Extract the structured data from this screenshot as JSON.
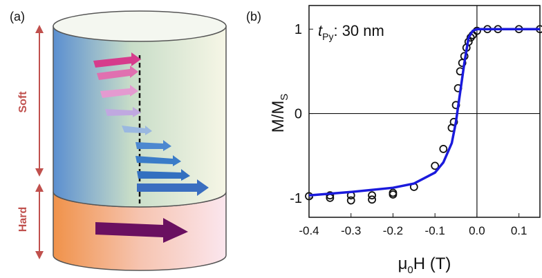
{
  "panel_a": {
    "label": "(a)",
    "soft_label": "Soft",
    "hard_label": "Hard"
  },
  "chart_data": {
    "type": "scatter",
    "panel_label": "(b)",
    "annotation": [
      "t",
      "Py",
      ": 30 nm"
    ],
    "x_label": [
      "μ",
      "0",
      "H (T)"
    ],
    "y_label": [
      "M/M",
      "S"
    ],
    "xlim": [
      -0.4,
      0.15
    ],
    "ylim": [
      -1.23,
      1.28
    ],
    "xticks": [
      -0.4,
      -0.3,
      -0.2,
      -0.1,
      {
        "value": 0,
        "label": "0.0"
      },
      0.1
    ],
    "yticks": [
      -1,
      0,
      1
    ],
    "zero_lines": true,
    "series": [
      {
        "type": "scatter",
        "color": "#111111",
        "x": [
          -0.4,
          -0.35,
          -0.35,
          -0.3,
          -0.3,
          -0.25,
          -0.25,
          -0.2,
          -0.2,
          -0.15,
          -0.1,
          -0.08,
          -0.06,
          -0.055,
          -0.05,
          -0.045,
          -0.04,
          -0.035,
          -0.03,
          -0.025,
          -0.02,
          -0.015,
          -0.01,
          0,
          0.025,
          0.05,
          0.1,
          0.15
        ],
        "y": [
          -0.98,
          -1.0,
          -0.97,
          -1.03,
          -0.97,
          -1.02,
          -0.97,
          -0.96,
          -0.94,
          -0.87,
          -0.62,
          -0.42,
          -0.17,
          -0.1,
          0.1,
          0.3,
          0.5,
          0.6,
          0.68,
          0.78,
          0.85,
          0.9,
          0.93,
          0.98,
          1.0,
          1.0,
          1.0,
          1.0
        ]
      },
      {
        "type": "line",
        "color": "#1a1adc",
        "x": [
          -0.4,
          -0.3,
          -0.2,
          -0.15,
          -0.1,
          -0.08,
          -0.06,
          -0.05,
          -0.04,
          -0.03,
          -0.02,
          -0.01,
          0,
          0.15
        ],
        "y": [
          -0.97,
          -0.93,
          -0.88,
          -0.83,
          -0.7,
          -0.58,
          -0.35,
          -0.1,
          0.25,
          0.6,
          0.9,
          0.98,
          1.0,
          1.0
        ]
      }
    ]
  }
}
